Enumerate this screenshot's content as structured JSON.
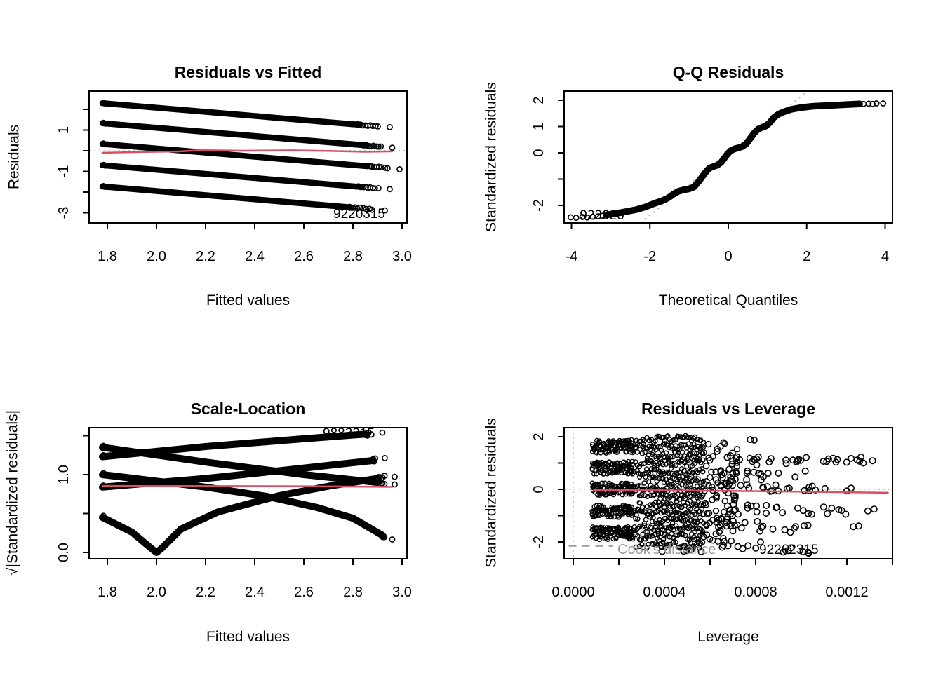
{
  "figure": {
    "background": "#ffffff"
  },
  "colors": {
    "points": "#000000",
    "smooth_line": "#d94f63",
    "reference_line": "#c3c3c3",
    "cook_legend": "#9b9b9b",
    "text": "#000000"
  },
  "chart_data": [
    {
      "type": "scatter",
      "panel": "residuals-vs-fitted",
      "title": "Residuals vs Fitted",
      "xlabel": "Fitted values",
      "ylabel": "Residuals",
      "xlim": [
        1.72,
        3.02
      ],
      "ylim": [
        -3.5,
        2.9
      ],
      "grid": false,
      "x_ticks": [
        {
          "v": 1.8,
          "label": "1.8"
        },
        {
          "v": 2.0,
          "label": "2.0"
        },
        {
          "v": 2.2,
          "label": "2.2"
        },
        {
          "v": 2.4,
          "label": "2.4"
        },
        {
          "v": 2.6,
          "label": "2.6"
        },
        {
          "v": 2.8,
          "label": "2.8"
        },
        {
          "v": 3.0,
          "label": "3.0"
        }
      ],
      "y_ticks": [
        {
          "v": -3,
          "label": "-3"
        },
        {
          "v": -2,
          "label": ""
        },
        {
          "v": -1,
          "label": "-1"
        },
        {
          "v": 0,
          "label": ""
        },
        {
          "v": 1,
          "label": "1"
        },
        {
          "v": 2,
          "label": ""
        }
      ],
      "zero_line_y": 0,
      "bands": [
        {
          "x_start": 1.78,
          "y_start": 2.3,
          "x_dense_end": 2.82,
          "slope": -1,
          "tail_end": 2.95,
          "tail_points": 12
        },
        {
          "x_start": 1.78,
          "y_start": 1.33,
          "x_dense_end": 2.84,
          "slope": -1,
          "tail_end": 2.96,
          "tail_points": 12
        },
        {
          "x_start": 1.78,
          "y_start": 0.33,
          "x_dense_end": 2.86,
          "slope": -1,
          "tail_end": 2.99,
          "tail_points": 11
        },
        {
          "x_start": 1.78,
          "y_start": -0.7,
          "x_dense_end": 2.82,
          "slope": -1,
          "tail_end": 2.95,
          "tail_points": 12
        },
        {
          "x_start": 1.78,
          "y_start": -1.73,
          "x_dense_end": 2.78,
          "slope": -1,
          "tail_end": 2.93,
          "tail_points": 12
        }
      ],
      "smooth_line": [
        [
          1.78,
          -0.1
        ],
        [
          1.95,
          -0.06
        ],
        [
          2.1,
          -0.03
        ],
        [
          2.18,
          0.03
        ],
        [
          2.35,
          0.0
        ],
        [
          2.55,
          0.02
        ],
        [
          2.7,
          -0.01
        ],
        [
          2.85,
          -0.05
        ],
        [
          2.96,
          -0.03
        ]
      ],
      "point_labels": [
        {
          "text": "9220315",
          "x": 2.82,
          "y": -3.25
        }
      ]
    },
    {
      "type": "scatter",
      "panel": "qq-residuals",
      "title": "Q-Q Residuals",
      "xlabel": "Theoretical Quantiles",
      "ylabel": "Standardized residuals",
      "xlim": [
        -4.19,
        4.19
      ],
      "ylim": [
        -2.67,
        2.35
      ],
      "grid": false,
      "x_ticks": [
        {
          "v": -4,
          "label": "-4"
        },
        {
          "v": -2,
          "label": "-2"
        },
        {
          "v": 0,
          "label": "0"
        },
        {
          "v": 2,
          "label": "2"
        },
        {
          "v": 4,
          "label": "4"
        }
      ],
      "y_ticks": [
        {
          "v": -2,
          "label": "-2"
        },
        {
          "v": -1,
          "label": ""
        },
        {
          "v": 0,
          "label": "0"
        },
        {
          "v": 1,
          "label": "1"
        },
        {
          "v": 2,
          "label": "2"
        }
      ],
      "qq_line": {
        "x1": -2.25,
        "y1": -2.66,
        "x2": 2.03,
        "y2": 2.35
      },
      "curve": [
        [
          -3.1,
          -2.36
        ],
        [
          -2.7,
          -2.26
        ],
        [
          -2.35,
          -2.16
        ],
        [
          -2.1,
          -2.05
        ],
        [
          -1.95,
          -1.96
        ],
        [
          -1.8,
          -1.88
        ],
        [
          -1.65,
          -1.8
        ],
        [
          -1.52,
          -1.7
        ],
        [
          -1.4,
          -1.57
        ],
        [
          -1.28,
          -1.47
        ],
        [
          -1.15,
          -1.41
        ],
        [
          -1.0,
          -1.37
        ],
        [
          -0.88,
          -1.3
        ],
        [
          -0.76,
          -1.1
        ],
        [
          -0.65,
          -0.88
        ],
        [
          -0.56,
          -0.7
        ],
        [
          -0.48,
          -0.58
        ],
        [
          -0.38,
          -0.52
        ],
        [
          -0.28,
          -0.47
        ],
        [
          -0.18,
          -0.36
        ],
        [
          -0.1,
          -0.2
        ],
        [
          -0.02,
          -0.04
        ],
        [
          0.06,
          0.08
        ],
        [
          0.16,
          0.15
        ],
        [
          0.26,
          0.19
        ],
        [
          0.36,
          0.24
        ],
        [
          0.46,
          0.35
        ],
        [
          0.56,
          0.55
        ],
        [
          0.66,
          0.75
        ],
        [
          0.76,
          0.9
        ],
        [
          0.86,
          0.97
        ],
        [
          0.96,
          1.02
        ],
        [
          1.06,
          1.15
        ],
        [
          1.16,
          1.34
        ],
        [
          1.28,
          1.47
        ],
        [
          1.42,
          1.56
        ],
        [
          1.6,
          1.65
        ],
        [
          1.85,
          1.72
        ],
        [
          2.15,
          1.77
        ],
        [
          2.55,
          1.8
        ],
        [
          2.95,
          1.83
        ],
        [
          3.35,
          1.86
        ]
      ],
      "left_tail": [
        [
          -4.02,
          -2.45
        ],
        [
          -3.88,
          -2.47
        ],
        [
          -3.72,
          -2.44
        ],
        [
          -3.6,
          -2.46
        ],
        [
          -3.46,
          -2.43
        ],
        [
          -3.32,
          -2.41
        ],
        [
          -3.2,
          -2.39
        ]
      ],
      "right_tail": [
        [
          3.45,
          1.86
        ],
        [
          3.58,
          1.87
        ],
        [
          3.68,
          1.86
        ],
        [
          3.78,
          1.88
        ],
        [
          3.95,
          1.88
        ]
      ],
      "point_labels": [
        {
          "text": "922620",
          "x": -3.2,
          "y": -2.52
        }
      ]
    },
    {
      "type": "scatter",
      "panel": "scale-location",
      "title": "Scale-Location",
      "xlabel": "Fitted values",
      "ylabel": "√|Standardized residuals|",
      "xlim": [
        1.72,
        3.02
      ],
      "ylim": [
        -0.08,
        1.6
      ],
      "grid": false,
      "x_ticks": [
        {
          "v": 1.8,
          "label": "1.8"
        },
        {
          "v": 2.0,
          "label": "2.0"
        },
        {
          "v": 2.2,
          "label": "2.2"
        },
        {
          "v": 2.4,
          "label": "2.4"
        },
        {
          "v": 2.6,
          "label": "2.6"
        },
        {
          "v": 2.8,
          "label": "2.8"
        },
        {
          "v": 3.0,
          "label": "3.0"
        }
      ],
      "y_ticks": [
        {
          "v": 0,
          "label": "0.0"
        },
        {
          "v": 0.5,
          "label": ""
        },
        {
          "v": 1.0,
          "label": "1.0"
        },
        {
          "v": 1.5,
          "label": ""
        }
      ],
      "curves": [
        {
          "pts": [
            [
              1.78,
              1.23
            ],
            [
              2.2,
              1.36
            ],
            [
              2.6,
              1.46
            ],
            [
              2.85,
              1.52
            ]
          ],
          "tail_end": 2.92,
          "tail_points": 5
        },
        {
          "pts": [
            [
              1.78,
              0.84
            ],
            [
              2.2,
              0.95
            ],
            [
              2.5,
              1.05
            ],
            [
              2.88,
              1.18
            ]
          ],
          "tail_end": 2.93,
          "tail_points": 5
        },
        {
          "pts": [
            [
              1.78,
              0.45
            ],
            [
              1.9,
              0.26
            ],
            [
              1.98,
              0.05
            ],
            [
              2.0,
              0.0
            ],
            [
              2.02,
              0.05
            ],
            [
              2.1,
              0.3
            ],
            [
              2.25,
              0.52
            ],
            [
              2.5,
              0.73
            ],
            [
              2.7,
              0.85
            ],
            [
              2.9,
              0.95
            ]
          ],
          "tail_end": 2.97,
          "tail_points": 7
        },
        {
          "pts": [
            [
              1.78,
              1.35
            ],
            [
              2.2,
              1.16
            ],
            [
              2.6,
              1.0
            ],
            [
              2.9,
              0.9
            ]
          ],
          "tail_end": 2.97,
          "tail_points": 7
        },
        {
          "pts": [
            [
              1.78,
              1.0
            ],
            [
              2.2,
              0.84
            ],
            [
              2.45,
              0.72
            ],
            [
              2.65,
              0.58
            ],
            [
              2.8,
              0.44
            ],
            [
              2.92,
              0.22
            ]
          ],
          "tail_end": 2.96,
          "tail_points": 6
        }
      ],
      "smooth_line": [
        [
          1.78,
          0.855
        ],
        [
          2.3,
          0.852
        ],
        [
          2.6,
          0.85
        ],
        [
          2.96,
          0.842
        ]
      ],
      "point_labels": [
        {
          "text": "9883315",
          "x": 2.77,
          "y": 1.48
        }
      ]
    },
    {
      "type": "scatter",
      "panel": "residuals-vs-leverage",
      "title": "Residuals vs Leverage",
      "xlabel": "Leverage",
      "ylabel": "Standardized residuals",
      "xlim": [
        -4e-05,
        0.0014
      ],
      "ylim": [
        -2.64,
        2.35
      ],
      "grid": false,
      "x_ticks": [
        {
          "v": 0,
          "label": "0.0000"
        },
        {
          "v": 0.0002,
          "label": ""
        },
        {
          "v": 0.0004,
          "label": "0.0004"
        },
        {
          "v": 0.0006,
          "label": ""
        },
        {
          "v": 0.0008,
          "label": "0.0008"
        },
        {
          "v": 0.001,
          "label": ""
        },
        {
          "v": 0.0012,
          "label": "0.0012"
        },
        {
          "v": 0.0014,
          "label": ""
        }
      ],
      "y_ticks": [
        {
          "v": -2,
          "label": "-2"
        },
        {
          "v": -1,
          "label": ""
        },
        {
          "v": 0,
          "label": "0"
        },
        {
          "v": 1,
          "label": ""
        },
        {
          "v": 2,
          "label": "2"
        }
      ],
      "zero_h_line": 0,
      "zero_v_line": 0,
      "finger_bands": {
        "x_start": 8.5e-05,
        "x_end": 0.00026,
        "centers": [
          1.62,
          0.82,
          0.0,
          -0.85,
          -1.67
        ],
        "half_width": 0.24
      },
      "dense_mass": {
        "x_start": 0.00024,
        "x_end": 0.000575,
        "y_min": -2.12,
        "y_max": 1.92
      },
      "moderate_zone": {
        "x_start": 0.00056,
        "x_end": 0.00072,
        "y_min": -2.1,
        "y_max": 1.8,
        "n": 90
      },
      "outlier_clusters": [
        {
          "x1": 0.00062,
          "x2": 0.00083,
          "y1": 0.9,
          "y2": 1.3,
          "n": 14
        },
        {
          "x1": 0.00083,
          "x2": 0.00106,
          "y1": 0.95,
          "y2": 1.25,
          "n": 10
        },
        {
          "x1": 0.00109,
          "x2": 0.00122,
          "y1": 0.95,
          "y2": 1.2,
          "n": 8
        },
        {
          "x1": 0.00124,
          "x2": 0.00133,
          "y1": 1.0,
          "y2": 1.25,
          "n": 5
        },
        {
          "x1": 0.00062,
          "x2": 0.0008,
          "y1": 0.3,
          "y2": 0.75,
          "n": 10
        },
        {
          "x1": 0.00078,
          "x2": 0.00102,
          "y1": 0.35,
          "y2": 0.7,
          "n": 8
        },
        {
          "x1": 0.00064,
          "x2": 0.0009,
          "y1": -0.15,
          "y2": 0.2,
          "n": 12
        },
        {
          "x1": 0.00092,
          "x2": 0.00126,
          "y1": -0.1,
          "y2": 0.15,
          "n": 10
        },
        {
          "x1": 0.00062,
          "x2": 0.00086,
          "y1": -0.95,
          "y2": -0.55,
          "n": 12
        },
        {
          "x1": 0.00088,
          "x2": 0.00112,
          "y1": -0.95,
          "y2": -0.65,
          "n": 9
        },
        {
          "x1": 0.00113,
          "x2": 0.00133,
          "y1": -1.0,
          "y2": -0.7,
          "n": 6
        },
        {
          "x1": 0.00064,
          "x2": 0.00084,
          "y1": -1.6,
          "y2": -1.2,
          "n": 9
        },
        {
          "x1": 0.00086,
          "x2": 0.00104,
          "y1": -1.65,
          "y2": -1.3,
          "n": 7
        },
        {
          "x1": 0.00122,
          "x2": 0.00128,
          "y1": -1.45,
          "y2": -1.3,
          "n": 2
        },
        {
          "x1": 0.00064,
          "x2": 0.0009,
          "y1": -2.35,
          "y2": -2.0,
          "n": 8
        },
        {
          "x1": 0.0009,
          "x2": 0.00108,
          "y1": -2.45,
          "y2": -2.15,
          "n": 6
        },
        {
          "x1": 0.00038,
          "x2": 0.0006,
          "y1": -2.4,
          "y2": -2.2,
          "n": 6
        },
        {
          "x1": 0.00076,
          "x2": 0.00082,
          "y1": 1.85,
          "y2": 1.95,
          "n": 2
        }
      ],
      "smooth_line": [
        [
          9e-05,
          -0.02
        ],
        [
          0.0004,
          -0.04
        ],
        [
          0.0008,
          -0.07
        ],
        [
          0.0011,
          -0.1
        ],
        [
          0.00138,
          -0.13
        ]
      ],
      "cook_legend": {
        "line_x1": -2e-05,
        "line_x2": 0.000175,
        "line_y": -2.15,
        "label": "Cook's distance",
        "label_x": 0.000195,
        "label_y": -2.5
      },
      "point_labels": [
        {
          "text": "92262315",
          "x": 0.000825,
          "y": -2.48
        }
      ]
    }
  ]
}
